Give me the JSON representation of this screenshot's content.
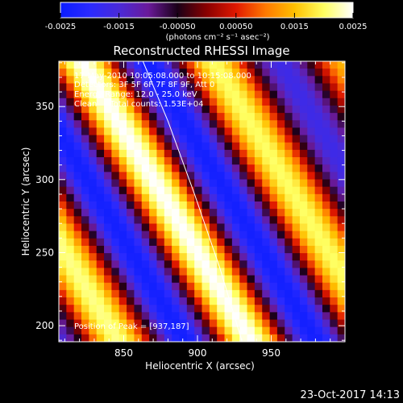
{
  "chart_data": {
    "type": "heatmap",
    "title": "Reconstructed RHESSI Image",
    "xlabel": "Heliocentric X (arcsec)",
    "ylabel": "Heliocentric Y (arcsec)",
    "xlim": [
      806,
      1000
    ],
    "ylim": [
      189,
      381
    ],
    "x_ticks": [
      850,
      900,
      950
    ],
    "y_ticks": [
      200,
      250,
      300,
      350
    ],
    "colorbar": {
      "min": -0.0025,
      "max": 0.0025,
      "ticks": [
        "-0.0025",
        "-0.0015",
        "-0.00050",
        "0.00050",
        "0.0015",
        "0.0025"
      ],
      "tick_values": [
        -0.0025,
        -0.0015,
        -0.0005,
        0.0005,
        0.0015,
        0.0025
      ],
      "unit_label": "(photons cm⁻² s⁻¹ asec⁻²)",
      "colors": [
        "#0a1cff",
        "#2a2aff",
        "#4a2ad8",
        "#6a1a9a",
        "#1a0018",
        "#8a0000",
        "#e01800",
        "#ff7800",
        "#ffc000",
        "#ffff60",
        "#ffffff"
      ]
    },
    "annotations": [
      "17-May-2010 10:05:08.000 to 10:15:08.000",
      "Detectors: 3F 5F 6F 7F 8F 9F, Att 0",
      "Energy Range: 12.0 - 25.0 keV",
      "Clean     Total counts: 1.53E+04"
    ],
    "peak_label": "Position of Peak = [937,187]",
    "peak": [
      937,
      187
    ],
    "pattern": {
      "grid": [
        38,
        38
      ],
      "slope_dx_per_dy": -0.6,
      "period_arcsec": 90,
      "ridge_x_at_y190": 936
    },
    "limb_curve_x": [
      [
        190,
        930
      ],
      [
        240,
        915
      ],
      [
        290,
        898
      ],
      [
        340,
        880
      ],
      [
        381,
        863
      ]
    ]
  },
  "timestamp": "23-Oct-2017 14:13"
}
